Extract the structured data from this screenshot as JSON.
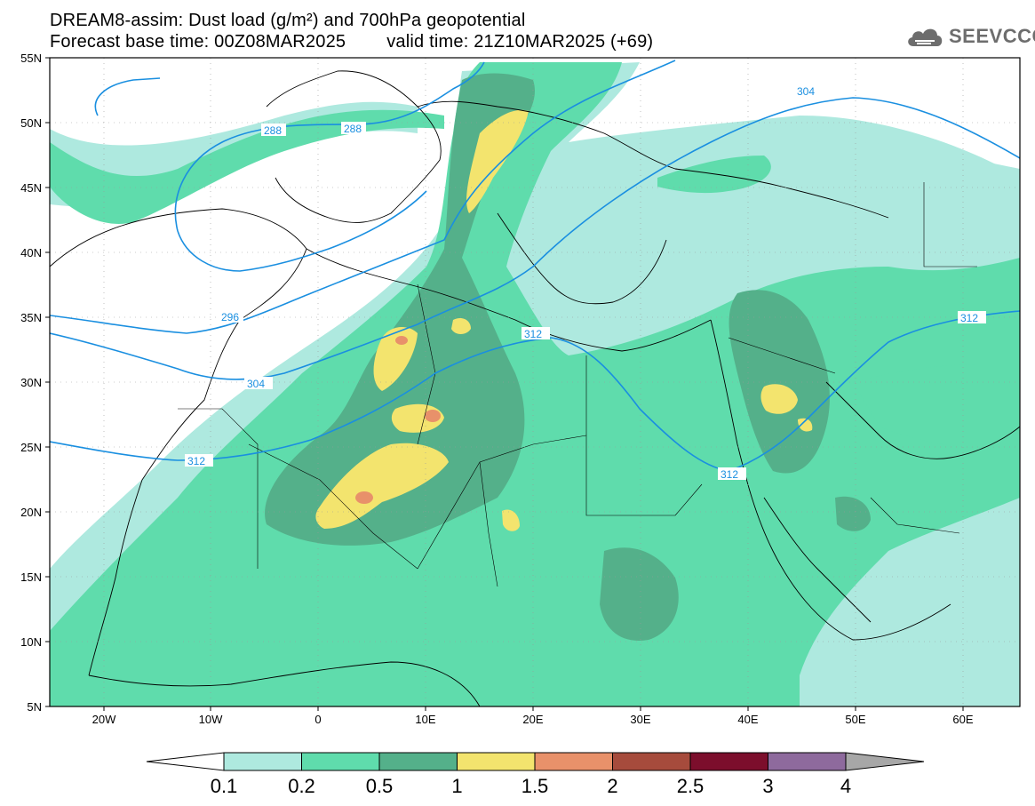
{
  "header": {
    "title_line1": "DREAM8-assim: Dust load (g/m²) and 700hPa geopotential",
    "base_time": "Forecast base time: 00Z08MAR2025",
    "valid_time": "valid time: 21Z10MAR2025 (+69)"
  },
  "logo": {
    "text": "SEEVCCC",
    "icon": "cloud-icon",
    "color": "#6d6d6d"
  },
  "map": {
    "lon_labels": [
      "20W",
      "10W",
      "0",
      "10E",
      "20E",
      "30E",
      "40E",
      "50E",
      "60E"
    ],
    "lat_labels": [
      "55N",
      "50N",
      "45N",
      "40N",
      "35N",
      "30N",
      "25N",
      "20N",
      "15N",
      "10N",
      "5N"
    ],
    "contour_labels": [
      "288",
      "288",
      "296",
      "304",
      "304",
      "312",
      "312",
      "312",
      "312"
    ],
    "colors": {
      "ocean": "#ffffff",
      "coast": "#000000",
      "contour": "#1a8fe0"
    }
  },
  "colorbar": {
    "labels": [
      "0.1",
      "0.2",
      "0.5",
      "1",
      "1.5",
      "2",
      "2.5",
      "3",
      "4"
    ],
    "colors": [
      "#ffffff",
      "#aee9df",
      "#5fdcac",
      "#54b08a",
      "#f3e46e",
      "#e8916a",
      "#a64b3c",
      "#7c0e2c",
      "#8e6a9d",
      "#a7a7a7"
    ]
  }
}
